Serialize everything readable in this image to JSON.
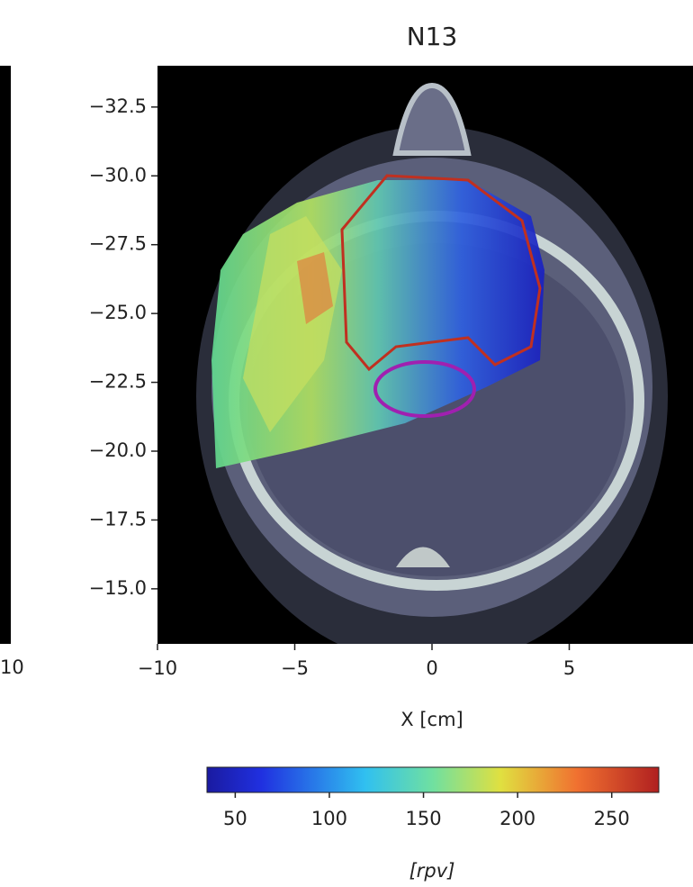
{
  "chart_data": {
    "type": "image",
    "title": "N13",
    "xlabel": "X [cm]",
    "xlim": [
      -10,
      10
    ],
    "xticks": [
      {
        "value": -10,
        "label": "−10"
      },
      {
        "value": -5,
        "label": "−5"
      },
      0,
      5
    ],
    "ylim": [
      -34,
      -13
    ],
    "yticks": [
      {
        "value": -32.5,
        "label": "−32.5"
      },
      {
        "value": -30.0,
        "label": "−30.0"
      },
      {
        "value": -27.5,
        "label": "−27.5"
      },
      {
        "value": -25.0,
        "label": "−25.0"
      },
      {
        "value": -22.5,
        "label": "−22.5"
      },
      {
        "value": -20.0,
        "label": "−20.0"
      },
      {
        "value": -17.5,
        "label": "−17.5"
      },
      {
        "value": -15.0,
        "label": "−15.0"
      }
    ],
    "colorbar": {
      "label": "[rpv]",
      "lim": [
        35,
        275
      ],
      "ticks": [
        50,
        100,
        150,
        200,
        250
      ]
    },
    "left_panel_xtick_label": "10"
  }
}
